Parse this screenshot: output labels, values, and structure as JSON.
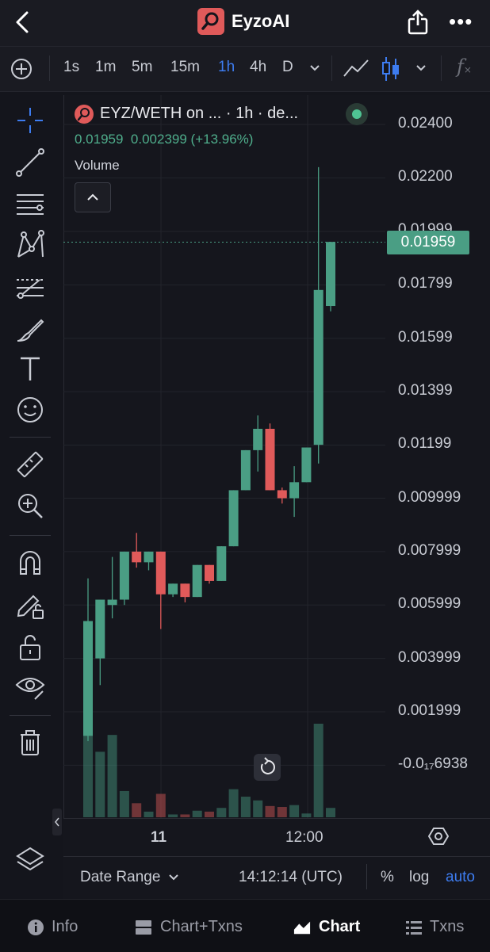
{
  "app": {
    "title": "EyzoAI",
    "accent": "#e05a5a"
  },
  "toolbar": {
    "timeframes": [
      "1s",
      "1m",
      "5m",
      "15m",
      "1h",
      "4h",
      "D"
    ],
    "active_timeframe": "1h"
  },
  "legend": {
    "title": "EYZ/WETH on ... · 1h · de...",
    "last": "0.01959",
    "change": "0.002399",
    "change_pct": "(+13.96%)",
    "volume_label": "Volume"
  },
  "price_scale": {
    "labels": [
      "0.02400",
      "0.02200",
      "0.01999",
      "0.01799",
      "0.01599",
      "0.01399",
      "0.01199",
      "0.009999",
      "0.007999",
      "0.005999",
      "0.003999",
      "0.001999",
      "-0.0₁₇6938"
    ],
    "current_price": "0.01959"
  },
  "time_axis": {
    "labels": [
      "11",
      "12:00"
    ]
  },
  "footer": {
    "date_range": "Date Range",
    "clock": "14:12:14 (UTC)",
    "percent": "%",
    "log": "log",
    "auto": "auto"
  },
  "nav": {
    "items": [
      "Info",
      "Chart+Txns",
      "Chart",
      "Txns"
    ],
    "active": "Chart"
  },
  "colors": {
    "up": "#4a9e84",
    "down": "#e05a5a",
    "active_blue": "#3d7cf0"
  },
  "chart_data": {
    "type": "candlestick",
    "ylim": [
      0,
      0.0245
    ],
    "candles": [
      {
        "o": 0.0011,
        "h": 0.007,
        "l": 0.0009,
        "c": 0.0054
      },
      {
        "o": 0.004,
        "h": 0.0062,
        "l": 0.003,
        "c": 0.0062
      },
      {
        "o": 0.006,
        "h": 0.0078,
        "l": 0.0055,
        "c": 0.0062
      },
      {
        "o": 0.0062,
        "h": 0.008,
        "l": 0.006,
        "c": 0.008
      },
      {
        "o": 0.008,
        "h": 0.0087,
        "l": 0.0074,
        "c": 0.0076
      },
      {
        "o": 0.0076,
        "h": 0.008,
        "l": 0.0073,
        "c": 0.008
      },
      {
        "o": 0.008,
        "h": 0.008,
        "l": 0.0051,
        "c": 0.0064
      },
      {
        "o": 0.0064,
        "h": 0.0068,
        "l": 0.0063,
        "c": 0.0068
      },
      {
        "o": 0.0068,
        "h": 0.0068,
        "l": 0.0061,
        "c": 0.0063
      },
      {
        "o": 0.0063,
        "h": 0.0075,
        "l": 0.0063,
        "c": 0.0075
      },
      {
        "o": 0.0075,
        "h": 0.0075,
        "l": 0.0068,
        "c": 0.0069
      },
      {
        "o": 0.0069,
        "h": 0.0082,
        "l": 0.0069,
        "c": 0.0082
      },
      {
        "o": 0.0082,
        "h": 0.0103,
        "l": 0.0082,
        "c": 0.0103
      },
      {
        "o": 0.0103,
        "h": 0.0118,
        "l": 0.0103,
        "c": 0.0118
      },
      {
        "o": 0.0118,
        "h": 0.0131,
        "l": 0.011,
        "c": 0.0126
      },
      {
        "o": 0.0126,
        "h": 0.0128,
        "l": 0.0103,
        "c": 0.0103
      },
      {
        "o": 0.0103,
        "h": 0.0104,
        "l": 0.0098,
        "c": 0.01
      },
      {
        "o": 0.01,
        "h": 0.0112,
        "l": 0.0093,
        "c": 0.0106
      },
      {
        "o": 0.0106,
        "h": 0.0119,
        "l": 0.0106,
        "c": 0.0119
      },
      {
        "o": 0.012,
        "h": 0.0224,
        "l": 0.0113,
        "c": 0.0178
      },
      {
        "o": 0.0172,
        "h": 0.0196,
        "l": 0.017,
        "c": 0.0196
      }
    ],
    "volumes": [
      0.9,
      0.7,
      0.88,
      0.28,
      0.15,
      0.06,
      0.25,
      0.03,
      0.03,
      0.07,
      0.06,
      0.1,
      0.3,
      0.22,
      0.18,
      0.12,
      0.11,
      0.13,
      0.04,
      1.0,
      0.1
    ]
  }
}
